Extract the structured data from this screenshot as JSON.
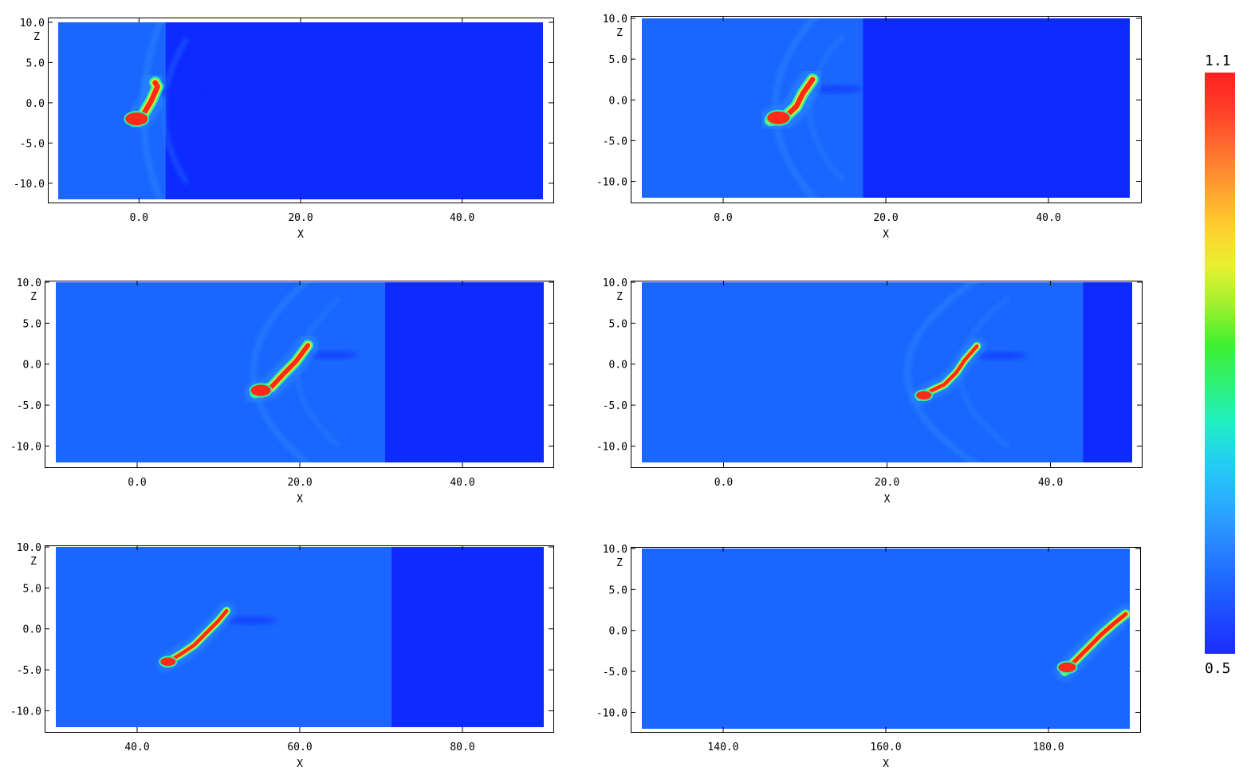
{
  "colorbar": {
    "min": 0.5,
    "max": 1.1,
    "min_label": "0.5",
    "max_label": "1.1",
    "colors": [
      "#1c2cff",
      "#1e4cff",
      "#1f6cff",
      "#2a8cff",
      "#2ab0ff",
      "#22d0f0",
      "#20f0c0",
      "#30f070",
      "#40f030",
      "#a0f030",
      "#e8f030",
      "#ffd030",
      "#ffa030",
      "#ff7030",
      "#ff4028",
      "#ff2020"
    ]
  },
  "colors": {
    "undisturbed": "#0d2aff",
    "ambient": "#1a66ff",
    "shell": "#2a8aff",
    "cloud_edge": "#30f0a0",
    "cloud_mid": "#e0f030",
    "cloud_core": "#ff2a1a"
  },
  "chart_data": [
    {
      "type": "heatmap",
      "xlabel": "X",
      "ylabel": "Z",
      "xlim": [
        -10,
        50
      ],
      "ylim": [
        -12,
        10
      ],
      "xticks": [
        0,
        20,
        40
      ],
      "xtick_labels": [
        "0.0",
        "20.0",
        "40.0"
      ],
      "yticks": [
        10,
        5,
        0,
        -5,
        -10
      ],
      "ytick_labels": [
        "10.0",
        "5.0",
        "0.0",
        "-5.0",
        "-10.0"
      ],
      "shock_x": 3.3,
      "cloud": [
        [
          -0.5,
          -2.2
        ],
        [
          0.5,
          -1.5
        ],
        [
          1.5,
          0.2
        ],
        [
          2.3,
          2.0
        ],
        [
          2.0,
          2.5
        ]
      ],
      "clump": [
        -0.3,
        -2.0
      ],
      "scale": 1.0
    },
    {
      "type": "heatmap",
      "xlabel": "X",
      "ylabel": "Z",
      "xlim": [
        -10,
        50
      ],
      "ylim": [
        -12,
        10
      ],
      "xticks": [
        0,
        20,
        40
      ],
      "xtick_labels": [
        "0.0",
        "20.0",
        "40.0"
      ],
      "yticks": [
        10,
        5,
        0,
        -5,
        -10
      ],
      "ytick_labels": [
        "10.0",
        "5.0",
        "0.0",
        "-5.0",
        "-10.0"
      ],
      "shock_x": 17.2,
      "cloud": [
        [
          5.8,
          -2.5
        ],
        [
          7.5,
          -2.2
        ],
        [
          9.0,
          -0.8
        ],
        [
          9.8,
          0.8
        ],
        [
          11.0,
          2.5
        ]
      ],
      "clump": [
        6.8,
        -2.2
      ],
      "scale": 1.0
    },
    {
      "type": "heatmap",
      "xlabel": "X",
      "ylabel": "Z",
      "xlim": [
        -10,
        50
      ],
      "ylim": [
        -12,
        10
      ],
      "xticks": [
        0,
        20,
        40
      ],
      "xtick_labels": [
        "0.0",
        "20.0",
        "40.0"
      ],
      "yticks": [
        10,
        5,
        0,
        -5,
        -10
      ],
      "ytick_labels": [
        "10.0",
        "5.0",
        "0.0",
        "-5.0",
        "-10.0"
      ],
      "shock_x": 30.5,
      "cloud": [
        [
          14.5,
          -3.5
        ],
        [
          16.5,
          -2.8
        ],
        [
          18.0,
          -1.2
        ],
        [
          19.5,
          0.3
        ],
        [
          21.0,
          2.3
        ]
      ],
      "clump": [
        15.2,
        -3.2
      ],
      "scale": 0.9
    },
    {
      "type": "heatmap",
      "xlabel": "X",
      "ylabel": "Z",
      "xlim": [
        -10,
        50
      ],
      "ylim": [
        -12,
        10
      ],
      "xticks": [
        0,
        20,
        40
      ],
      "xtick_labels": [
        "0.0",
        "20.0",
        "40.0"
      ],
      "yticks": [
        10,
        5,
        0,
        -5,
        -10
      ],
      "ytick_labels": [
        "10.0",
        "5.0",
        "0.0",
        "-5.0",
        "-10.0"
      ],
      "shock_x": 44.0,
      "cloud": [
        [
          24.0,
          -4.0
        ],
        [
          25.5,
          -3.2
        ],
        [
          27.0,
          -2.5
        ],
        [
          28.5,
          -1.0
        ],
        [
          29.5,
          0.5
        ],
        [
          31.0,
          2.2
        ]
      ],
      "clump": [
        24.5,
        -3.8
      ],
      "scale": 0.7
    },
    {
      "type": "heatmap",
      "xlabel": "X",
      "ylabel": "Z",
      "xlim": [
        30,
        90
      ],
      "ylim": [
        -12,
        10
      ],
      "xticks": [
        40,
        60,
        80
      ],
      "xtick_labels": [
        "40.0",
        "60.0",
        "80.0"
      ],
      "yticks": [
        10,
        5,
        0,
        -5,
        -10
      ],
      "ytick_labels": [
        "10.0",
        "5.0",
        "0.0",
        "-5.0",
        "-10.0"
      ],
      "shock_x": 71.3,
      "cloud": [
        [
          43.5,
          -4.2
        ],
        [
          45.5,
          -3.0
        ],
        [
          47.0,
          -2.0
        ],
        [
          48.5,
          -0.5
        ],
        [
          50.0,
          1.0
        ],
        [
          51.0,
          2.2
        ]
      ],
      "clump": [
        43.8,
        -4.0
      ],
      "scale": 0.7
    },
    {
      "type": "heatmap",
      "xlabel": "X",
      "ylabel": "Z",
      "xlim": [
        130,
        190
      ],
      "ylim": [
        -12,
        10
      ],
      "xticks": [
        140,
        160,
        180
      ],
      "xtick_labels": [
        "140.0",
        "160.0",
        "180.0"
      ],
      "yticks": [
        10,
        5,
        0,
        -5,
        -10
      ],
      "ytick_labels": [
        "10.0",
        "5.0",
        "0.0",
        "-5.0",
        "-10.0"
      ],
      "shock_x": null,
      "cloud": [
        [
          182.0,
          -5.0
        ],
        [
          183.5,
          -3.5
        ],
        [
          185.0,
          -2.0
        ],
        [
          186.5,
          -0.5
        ],
        [
          188.0,
          0.8
        ],
        [
          189.5,
          2.0
        ]
      ],
      "clump": [
        182.3,
        -4.5
      ],
      "scale": 0.8
    }
  ]
}
